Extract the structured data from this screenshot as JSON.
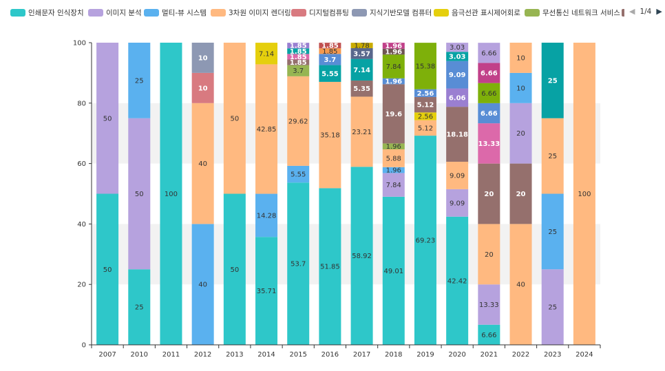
{
  "legend": {
    "items": [
      {
        "label": "인쇄문자 인식장치",
        "color": "#2ec7c9"
      },
      {
        "label": "이미지 분석",
        "color": "#b6a2de"
      },
      {
        "label": "멀티-뷰 시스템",
        "color": "#5ab1ef"
      },
      {
        "label": "3차원 이미지 렌더링",
        "color": "#ffb980"
      },
      {
        "label": "디지털컴퓨팅",
        "color": "#d87a80"
      },
      {
        "label": "지식기반모델 컴퓨터",
        "color": "#8d98b3"
      },
      {
        "label": "음극선관 표시제어회로",
        "color": "#e5cf0d"
      },
      {
        "label": "무선통신 네트워크 서비스",
        "color": "#97b552"
      }
    ],
    "pager": "1/4",
    "pager_prev_icon": "◀",
    "pager_next_icon": "▶"
  },
  "chart_data": {
    "type": "bar",
    "stacked": true,
    "categories": [
      "2007",
      "2010",
      "2011",
      "2012",
      "2013",
      "2014",
      "2015",
      "2016",
      "2017",
      "2018",
      "2019",
      "2020",
      "2021",
      "2022",
      "2023",
      "2024"
    ],
    "ylim": [
      0,
      100
    ],
    "yticks": [
      0,
      20,
      40,
      60,
      80,
      100
    ],
    "grid": "alternating horizontal bands",
    "legend_position": "top",
    "colors": {
      "A": "#2ec7c9",
      "B": "#b6a2de",
      "C": "#5ab1ef",
      "D": "#ffb980",
      "E": "#d87a80",
      "F": "#8d98b3",
      "G": "#e5cf0d",
      "H": "#97b552",
      "I": "#95706d",
      "J": "#dc69aa",
      "K": "#07a2a4",
      "L": "#9a7fd1",
      "M": "#588dd5",
      "N": "#f5994e",
      "O": "#c05050",
      "P": "#59678c",
      "Q": "#c9ab00",
      "R": "#7eb00a",
      "S": "#6f5553",
      "T": "#c14089"
    },
    "bars": [
      {
        "category": "2007",
        "segments": [
          {
            "c": "A",
            "v": 50
          },
          {
            "c": "B",
            "v": 50
          }
        ]
      },
      {
        "category": "2010",
        "segments": [
          {
            "c": "A",
            "v": 25
          },
          {
            "c": "B",
            "v": 50
          },
          {
            "c": "C",
            "v": 25
          }
        ]
      },
      {
        "category": "2011",
        "segments": [
          {
            "c": "A",
            "v": 100
          }
        ]
      },
      {
        "category": "2012",
        "segments": [
          {
            "c": "C",
            "v": 40
          },
          {
            "c": "D",
            "v": 40
          },
          {
            "c": "E",
            "v": 10
          },
          {
            "c": "F",
            "v": 10
          }
        ]
      },
      {
        "category": "2013",
        "segments": [
          {
            "c": "A",
            "v": 50
          },
          {
            "c": "D",
            "v": 50
          }
        ]
      },
      {
        "category": "2014",
        "segments": [
          {
            "c": "A",
            "v": 35.71
          },
          {
            "c": "C",
            "v": 14.28
          },
          {
            "c": "D",
            "v": 42.85
          },
          {
            "c": "G",
            "v": 7.14
          }
        ]
      },
      {
        "category": "2015",
        "segments": [
          {
            "c": "A",
            "v": 53.7
          },
          {
            "c": "C",
            "v": 5.55
          },
          {
            "c": "D",
            "v": 29.62
          },
          {
            "c": "H",
            "v": 3.7
          },
          {
            "c": "I",
            "v": 1.85
          },
          {
            "c": "J",
            "v": 1.85
          },
          {
            "c": "K",
            "v": 1.85
          },
          {
            "c": "L",
            "v": 1.85
          }
        ]
      },
      {
        "category": "2016",
        "segments": [
          {
            "c": "A",
            "v": 51.85
          },
          {
            "c": "D",
            "v": 35.18
          },
          {
            "c": "K",
            "v": 5.55
          },
          {
            "c": "M",
            "v": 3.7
          },
          {
            "c": "N",
            "v": 1.85
          },
          {
            "c": "O",
            "v": 1.85
          }
        ]
      },
      {
        "category": "2017",
        "segments": [
          {
            "c": "A",
            "v": 58.92
          },
          {
            "c": "D",
            "v": 23.21
          },
          {
            "c": "I",
            "v": 5.35
          },
          {
            "c": "K",
            "v": 7.14
          },
          {
            "c": "P",
            "v": 3.57
          },
          {
            "c": "Q",
            "v": 1.78
          }
        ]
      },
      {
        "category": "2018",
        "segments": [
          {
            "c": "A",
            "v": 49.01
          },
          {
            "c": "B",
            "v": 7.84
          },
          {
            "c": "C",
            "v": 1.96
          },
          {
            "c": "D",
            "v": 5.88
          },
          {
            "c": "H",
            "v": 1.96
          },
          {
            "c": "I",
            "v": 19.6
          },
          {
            "c": "M",
            "v": 1.96
          },
          {
            "c": "R",
            "v": 7.84
          },
          {
            "c": "S",
            "v": 1.96
          },
          {
            "c": "T",
            "v": 1.96
          }
        ]
      },
      {
        "category": "2019",
        "segments": [
          {
            "c": "A",
            "v": 69.23
          },
          {
            "c": "D",
            "v": 5.12
          },
          {
            "c": "G",
            "v": 2.56
          },
          {
            "c": "I",
            "v": 5.12
          },
          {
            "c": "M",
            "v": 2.56
          },
          {
            "c": "R",
            "v": 15.38
          }
        ]
      },
      {
        "category": "2020",
        "segments": [
          {
            "c": "A",
            "v": 42.42
          },
          {
            "c": "B",
            "v": 9.09
          },
          {
            "c": "D",
            "v": 9.09
          },
          {
            "c": "I",
            "v": 18.18
          },
          {
            "c": "L",
            "v": 6.06
          },
          {
            "c": "M",
            "v": 9.09
          },
          {
            "c": "K",
            "v": 3.03
          },
          {
            "c": "B",
            "v": 3.03
          }
        ]
      },
      {
        "category": "2021",
        "segments": [
          {
            "c": "A",
            "v": 6.66
          },
          {
            "c": "B",
            "v": 13.33
          },
          {
            "c": "D",
            "v": 20
          },
          {
            "c": "I",
            "v": 20
          },
          {
            "c": "J",
            "v": 13.33
          },
          {
            "c": "M",
            "v": 6.66
          },
          {
            "c": "R",
            "v": 6.66
          },
          {
            "c": "T",
            "v": 6.66
          },
          {
            "c": "B",
            "v": 6.66
          }
        ]
      },
      {
        "category": "2022",
        "segments": [
          {
            "c": "D",
            "v": 40
          },
          {
            "c": "I",
            "v": 20
          },
          {
            "c": "B",
            "v": 20
          },
          {
            "c": "C",
            "v": 10
          },
          {
            "c": "D",
            "v": 10
          }
        ]
      },
      {
        "category": "2023",
        "segments": [
          {
            "c": "B",
            "v": 25
          },
          {
            "c": "C",
            "v": 25
          },
          {
            "c": "D",
            "v": 25
          },
          {
            "c": "K",
            "v": 25
          }
        ]
      },
      {
        "category": "2024",
        "segments": [
          {
            "c": "D",
            "v": 100
          }
        ]
      }
    ]
  }
}
